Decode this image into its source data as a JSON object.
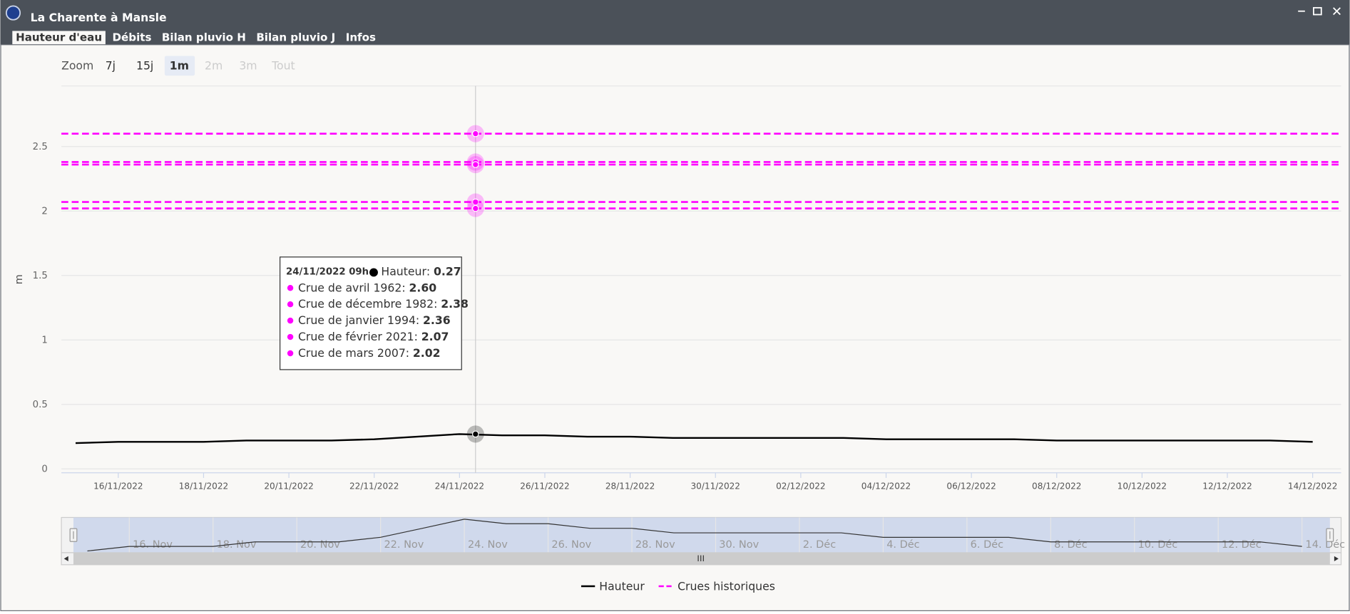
{
  "window": {
    "title": "La Charente à Mansle",
    "tabs": [
      {
        "label": "Hauteur d'eau",
        "active": true
      },
      {
        "label": "Débits",
        "active": false
      },
      {
        "label": "Bilan pluvio H",
        "active": false
      },
      {
        "label": "Bilan pluvio J",
        "active": false
      },
      {
        "label": "Infos",
        "active": false
      }
    ]
  },
  "zoom": {
    "label": "Zoom",
    "buttons": [
      {
        "label": "7j",
        "state": "normal"
      },
      {
        "label": "15j",
        "state": "normal"
      },
      {
        "label": "1m",
        "state": "selected"
      },
      {
        "label": "2m",
        "state": "disabled"
      },
      {
        "label": "3m",
        "state": "disabled"
      },
      {
        "label": "Tout",
        "state": "disabled"
      }
    ]
  },
  "chart_data": {
    "type": "line",
    "y_label": "m",
    "x": [
      "15/11/2022",
      "16/11/2022",
      "17/11/2022",
      "18/11/2022",
      "19/11/2022",
      "20/11/2022",
      "21/11/2022",
      "22/11/2022",
      "23/11/2022",
      "24/11/2022",
      "25/11/2022",
      "26/11/2022",
      "27/11/2022",
      "28/11/2022",
      "29/11/2022",
      "30/11/2022",
      "01/12/2022",
      "02/12/2022",
      "03/12/2022",
      "04/12/2022",
      "05/12/2022",
      "06/12/2022",
      "07/12/2022",
      "08/12/2022",
      "09/12/2022",
      "10/12/2022",
      "11/12/2022",
      "12/12/2022",
      "13/12/2022",
      "14/12/2022"
    ],
    "series": [
      {
        "name": "Hauteur",
        "color": "#000000",
        "values": [
          0.2,
          0.21,
          0.21,
          0.21,
          0.22,
          0.22,
          0.22,
          0.23,
          0.25,
          0.27,
          0.26,
          0.26,
          0.25,
          0.25,
          0.24,
          0.24,
          0.24,
          0.24,
          0.24,
          0.23,
          0.23,
          0.23,
          0.23,
          0.22,
          0.22,
          0.22,
          0.22,
          0.22,
          0.22,
          0.21
        ]
      }
    ],
    "thresholds": {
      "name": "Crues historiques",
      "color": "#ff00ff",
      "labels": [
        "Crue de avril 1962",
        "Crue de décembre 1982",
        "Crue de janvier 1994",
        "Crue de février 2021",
        "Crue de mars 2007"
      ],
      "values": [
        2.6,
        2.38,
        2.36,
        2.07,
        2.02
      ],
      "value_labels": [
        "2.60",
        "2.38",
        "2.36",
        "2.07",
        "2.02"
      ]
    },
    "xlim": [
      "14/11/2022 16h",
      "14/12/2022 16h"
    ],
    "xticks": [
      "16/11/2022",
      "18/11/2022",
      "20/11/2022",
      "22/11/2022",
      "24/11/2022",
      "26/11/2022",
      "28/11/2022",
      "30/11/2022",
      "02/12/2022",
      "04/12/2022",
      "06/12/2022",
      "08/12/2022",
      "10/12/2022",
      "12/12/2022",
      "14/12/2022"
    ],
    "ylim": [
      -0.03,
      2.97
    ],
    "yticks": [
      0,
      0.5,
      1,
      1.5,
      2,
      2.5
    ],
    "grid": true,
    "tooltip_date": "24/11/2022 09h",
    "tooltip_separator": ":",
    "navigator_labels": [
      "16. Nov",
      "18. Nov",
      "20. Nov",
      "22. Nov",
      "24. Nov",
      "26. Nov",
      "28. Nov",
      "30. Nov",
      "2. Déc",
      "4. Déc",
      "6. Déc",
      "8. Déc",
      "10. Déc",
      "12. Déc",
      "14. Déc"
    ]
  }
}
